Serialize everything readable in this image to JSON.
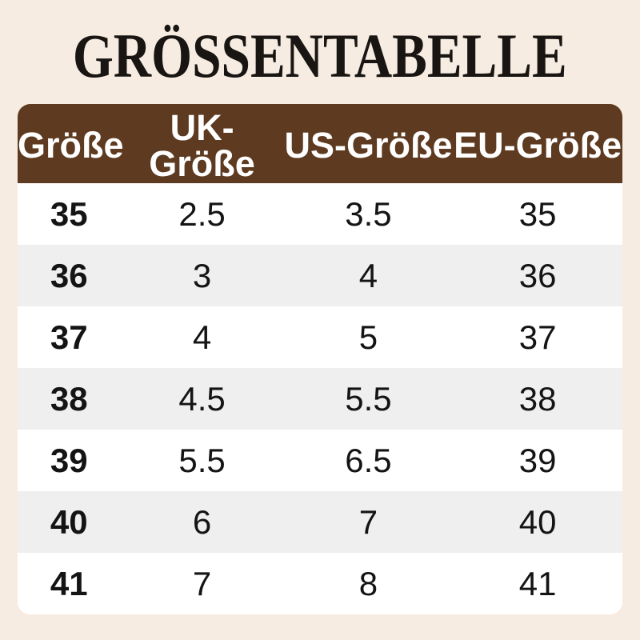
{
  "chart_data": {
    "type": "table",
    "title": "GRÖSSENTABELLE",
    "columns": [
      "Größe",
      "UK-Größe",
      "US-Größe",
      "EU-Größe"
    ],
    "rows": [
      [
        "35",
        "2.5",
        "3.5",
        "35"
      ],
      [
        "36",
        "3",
        "4",
        "36"
      ],
      [
        "37",
        "4",
        "5",
        "37"
      ],
      [
        "38",
        "4.5",
        "5.5",
        "38"
      ],
      [
        "39",
        "5.5",
        "6.5",
        "39"
      ],
      [
        "40",
        "6",
        "7",
        "40"
      ],
      [
        "41",
        "7",
        "8",
        "41"
      ]
    ],
    "layout": {
      "legend": "none",
      "grid": "off",
      "row_striping": "alternating"
    }
  },
  "colors": {
    "page_background": "#f7ece1",
    "header_background": "#5d3a20",
    "header_text": "#ffffff",
    "row_background": "#ffffff",
    "row_alt_background": "#efefef",
    "body_text": "#141414",
    "title_text": "#181512"
  }
}
